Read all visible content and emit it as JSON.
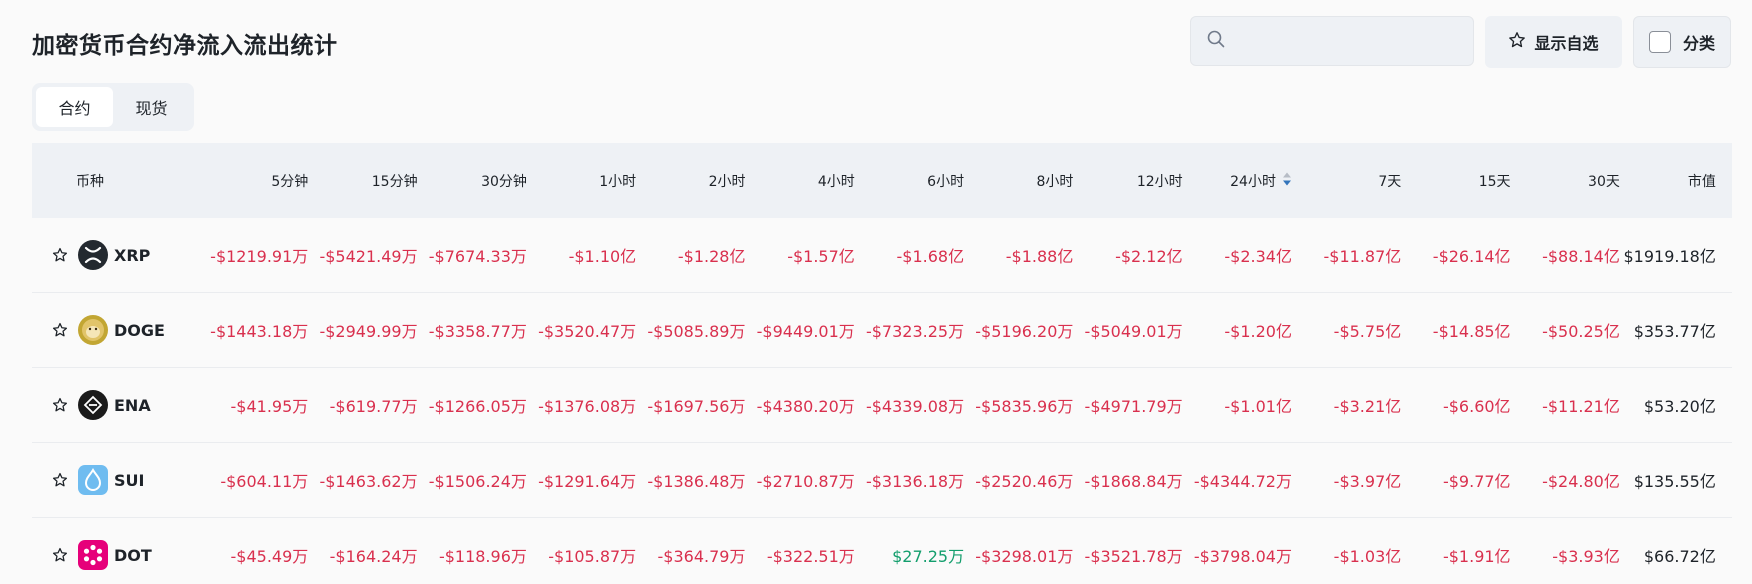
{
  "title": "加密货币合约净流入流出统计",
  "search": {
    "placeholder": ""
  },
  "buttons": {
    "favorites": "显示自选",
    "category": "分类"
  },
  "tabs": [
    {
      "label": "合约"
    },
    {
      "label": "现货"
    }
  ],
  "columns": [
    "币种",
    "5分钟",
    "15分钟",
    "30分钟",
    "1小时",
    "2小时",
    "4小时",
    "6小时",
    "8小时",
    "12小时",
    "24小时",
    "7天",
    "15天",
    "30天",
    "市值"
  ],
  "colors": {
    "negative": "#d9304e",
    "positive": "#139e6d",
    "sort_active": "#3375bb"
  },
  "rows": [
    {
      "symbol": "XRP",
      "icon": "xrp-logo-icon",
      "values": [
        "-$1219.91万",
        "-$5421.49万",
        "-$7674.33万",
        "-$1.10亿",
        "-$1.28亿",
        "-$1.57亿",
        "-$1.68亿",
        "-$1.88亿",
        "-$2.12亿",
        "-$2.34亿",
        "-$11.87亿",
        "-$26.14亿",
        "-$88.14亿"
      ],
      "market_cap": "$1919.18亿"
    },
    {
      "symbol": "DOGE",
      "icon": "doge-logo-icon",
      "values": [
        "-$1443.18万",
        "-$2949.99万",
        "-$3358.77万",
        "-$3520.47万",
        "-$5085.89万",
        "-$9449.01万",
        "-$7323.25万",
        "-$5196.20万",
        "-$5049.01万",
        "-$1.20亿",
        "-$5.75亿",
        "-$14.85亿",
        "-$50.25亿"
      ],
      "market_cap": "$353.77亿"
    },
    {
      "symbol": "ENA",
      "icon": "ena-logo-icon",
      "values": [
        "-$41.95万",
        "-$619.77万",
        "-$1266.05万",
        "-$1376.08万",
        "-$1697.56万",
        "-$4380.20万",
        "-$4339.08万",
        "-$5835.96万",
        "-$4971.79万",
        "-$1.01亿",
        "-$3.21亿",
        "-$6.60亿",
        "-$11.21亿"
      ],
      "market_cap": "$53.20亿"
    },
    {
      "symbol": "SUI",
      "icon": "sui-logo-icon",
      "values": [
        "-$604.11万",
        "-$1463.62万",
        "-$1506.24万",
        "-$1291.64万",
        "-$1386.48万",
        "-$2710.87万",
        "-$3136.18万",
        "-$2520.46万",
        "-$1868.84万",
        "-$4344.72万",
        "-$3.97亿",
        "-$9.77亿",
        "-$24.80亿"
      ],
      "market_cap": "$135.55亿"
    },
    {
      "symbol": "DOT",
      "icon": "dot-logo-icon",
      "values": [
        "-$45.49万",
        "-$164.24万",
        "-$118.96万",
        "-$105.87万",
        "-$364.79万",
        "-$322.51万",
        "$27.25万",
        "-$3298.01万",
        "-$3521.78万",
        "-$3798.04万",
        "-$1.03亿",
        "-$1.91亿",
        "-$3.93亿"
      ],
      "market_cap": "$66.72亿"
    }
  ]
}
